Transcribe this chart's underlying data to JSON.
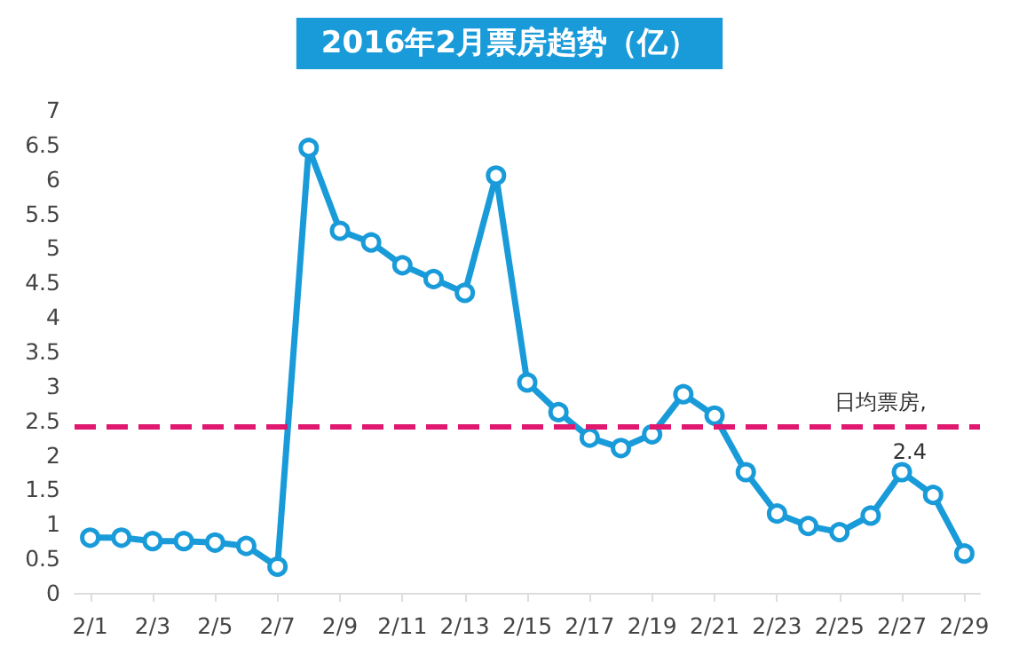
{
  "chart_data": {
    "type": "line",
    "title": "2016年2月票房趋势（亿）",
    "categories": [
      "2/1",
      null,
      "2/3",
      null,
      "2/5",
      null,
      "2/7",
      null,
      "2/9",
      null,
      "2/11",
      null,
      "2/13",
      null,
      "2/15",
      null,
      "2/17",
      null,
      "2/19",
      null,
      "2/21",
      null,
      "2/23",
      null,
      "2/25",
      null,
      "2/27",
      null,
      "2/29"
    ],
    "series": [
      {
        "color": "#1a9bd9",
        "values": [
          0.8,
          0.8,
          0.75,
          0.75,
          0.73,
          0.68,
          0.38,
          6.45,
          5.25,
          5.08,
          4.75,
          4.55,
          4.35,
          6.05,
          3.05,
          2.62,
          2.25,
          2.1,
          2.3,
          2.88,
          2.57,
          1.75,
          1.15,
          0.97,
          0.88,
          1.12,
          1.75,
          1.42,
          0.57
        ]
      }
    ],
    "ylim": [
      0,
      7
    ],
    "yticks": [
      0,
      0.5,
      1,
      1.5,
      2,
      2.5,
      3,
      3.5,
      4,
      4.5,
      5,
      5.5,
      6,
      6.5,
      7
    ],
    "ref_lines": [
      {
        "axis": "y",
        "value": 2.4,
        "label": "日均票房,\n2.4",
        "color": "#e0186f",
        "line_style": "dashed"
      }
    ],
    "grid": false,
    "marker": "circle",
    "line_style": "solid"
  }
}
